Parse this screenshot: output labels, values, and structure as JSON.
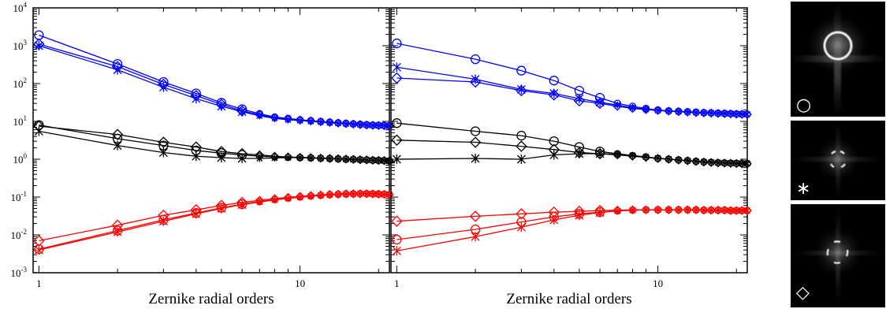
{
  "chart_data": [
    {
      "type": "line",
      "title": "",
      "xlabel": "Zernike radial orders",
      "ylabel": "",
      "x_scale": "log",
      "y_scale": "log",
      "xlim": [
        0.95,
        22
      ],
      "ylim": [
        0.001,
        10000
      ],
      "x_tick_labels": [
        {
          "value": 1,
          "label": "1"
        },
        {
          "value": 10,
          "label": "10"
        }
      ],
      "y_tick_labels": [
        {
          "value": 0.001,
          "base": "10",
          "exp": "-3"
        },
        {
          "value": 0.01,
          "base": "10",
          "exp": "-2"
        },
        {
          "value": 0.1,
          "base": "10",
          "exp": "-1"
        },
        {
          "value": 1,
          "base": "10",
          "exp": "0"
        },
        {
          "value": 10,
          "base": "10",
          "exp": "1"
        },
        {
          "value": 100,
          "base": "10",
          "exp": "2"
        },
        {
          "value": 1000,
          "base": "10",
          "exp": "3"
        },
        {
          "value": 10000,
          "base": "10",
          "exp": "4"
        }
      ],
      "grid": false,
      "x": [
        1,
        2,
        3,
        4,
        5,
        6,
        7,
        8,
        9,
        10,
        11,
        12,
        13,
        14,
        15,
        16,
        17,
        18,
        19,
        20,
        21,
        22
      ],
      "series": [
        {
          "color": "#0000ff",
          "marker": "circle",
          "values": [
            1900,
            330,
            110,
            55,
            31,
            21,
            16,
            13,
            12,
            11,
            10.5,
            10,
            9.6,
            9.2,
            8.9,
            8.6,
            8.4,
            8.2,
            8,
            7.9,
            7.8,
            7.7
          ]
        },
        {
          "color": "#0000ff",
          "marker": "diamond",
          "values": [
            1100,
            280,
            95,
            48,
            28,
            19,
            15,
            12.5,
            11.5,
            10.8,
            10.3,
            9.8,
            9.4,
            9,
            8.7,
            8.5,
            8.2,
            8,
            7.9,
            7.8,
            7.7,
            7.6
          ]
        },
        {
          "color": "#0000ff",
          "marker": "star",
          "values": [
            1000,
            230,
            80,
            40,
            25,
            18,
            14,
            12,
            11,
            10.5,
            10,
            9.6,
            9.2,
            8.9,
            8.6,
            8.4,
            8.2,
            8,
            7.9,
            7.8,
            7.7,
            7.6
          ]
        },
        {
          "color": "#000000",
          "marker": "circle",
          "values": [
            8,
            3.5,
            2.3,
            1.7,
            1.45,
            1.3,
            1.2,
            1.15,
            1.12,
            1.1,
            1.08,
            1.06,
            1.04,
            1.02,
            1,
            0.99,
            0.97,
            0.96,
            0.94,
            0.93,
            0.92,
            0.9
          ]
        },
        {
          "color": "#000000",
          "marker": "diamond",
          "values": [
            7.5,
            4.5,
            2.8,
            2.1,
            1.6,
            1.4,
            1.3,
            1.2,
            1.15,
            1.12,
            1.1,
            1.07,
            1.05,
            1.03,
            1.01,
            0.99,
            0.97,
            0.96,
            0.94,
            0.93,
            0.92,
            0.9
          ]
        },
        {
          "color": "#000000",
          "marker": "star",
          "values": [
            5.5,
            2.3,
            1.5,
            1.2,
            1.1,
            1.05,
            1.05,
            1.08,
            1.1,
            1.1,
            1.08,
            1.06,
            1.04,
            1.02,
            1,
            0.98,
            0.97,
            0.95,
            0.94,
            0.93,
            0.92,
            0.9
          ]
        },
        {
          "color": "#ff0000",
          "marker": "circle",
          "values": [
            0.0042,
            0.013,
            0.025,
            0.038,
            0.052,
            0.065,
            0.076,
            0.086,
            0.094,
            0.101,
            0.107,
            0.112,
            0.116,
            0.119,
            0.121,
            0.122,
            0.123,
            0.123,
            0.122,
            0.12,
            0.119,
            0.117
          ]
        },
        {
          "color": "#ff0000",
          "marker": "diamond",
          "values": [
            0.007,
            0.018,
            0.033,
            0.046,
            0.06,
            0.072,
            0.082,
            0.091,
            0.098,
            0.104,
            0.109,
            0.113,
            0.117,
            0.119,
            0.121,
            0.122,
            0.122,
            0.122,
            0.121,
            0.12,
            0.118,
            0.116
          ]
        },
        {
          "color": "#ff0000",
          "marker": "star",
          "values": [
            0.004,
            0.012,
            0.023,
            0.036,
            0.05,
            0.063,
            0.074,
            0.084,
            0.092,
            0.099,
            0.105,
            0.11,
            0.114,
            0.117,
            0.119,
            0.121,
            0.122,
            0.122,
            0.121,
            0.12,
            0.118,
            0.116
          ]
        }
      ]
    },
    {
      "type": "line",
      "title": "",
      "xlabel": "Zernike radial orders",
      "ylabel": "",
      "x_scale": "log",
      "y_scale": "log",
      "xlim": [
        0.95,
        22
      ],
      "ylim": [
        0.001,
        10000
      ],
      "x_tick_labels": [
        {
          "value": 1,
          "label": "1"
        },
        {
          "value": 10,
          "label": "10"
        }
      ],
      "grid": false,
      "x": [
        1,
        2,
        3,
        4,
        5,
        6,
        7,
        8,
        9,
        10,
        11,
        12,
        13,
        14,
        15,
        16,
        17,
        18,
        19,
        20,
        21,
        22
      ],
      "series": [
        {
          "color": "#0000ff",
          "marker": "circle",
          "values": [
            1150,
            440,
            220,
            120,
            65,
            42,
            30,
            25,
            22,
            20,
            19,
            18.5,
            18,
            17.5,
            17,
            16.8,
            16.5,
            16.3,
            16,
            15.8,
            15.6,
            15.5
          ]
        },
        {
          "color": "#0000ff",
          "marker": "star",
          "values": [
            270,
            130,
            70,
            55,
            40,
            32,
            27,
            23,
            21,
            19.5,
            18.8,
            18.2,
            17.7,
            17.2,
            16.9,
            16.6,
            16.3,
            16.1,
            15.9,
            15.7,
            15.5,
            15.4
          ]
        },
        {
          "color": "#0000ff",
          "marker": "diamond",
          "values": [
            140,
            110,
            65,
            50,
            35,
            30,
            25,
            22,
            20.5,
            19.5,
            18.7,
            18.1,
            17.6,
            17.1,
            16.8,
            16.5,
            16.2,
            16,
            15.8,
            15.6,
            15.4,
            15.3
          ]
        },
        {
          "color": "#000000",
          "marker": "circle",
          "values": [
            9,
            5.5,
            4.2,
            3,
            2.1,
            1.6,
            1.4,
            1.25,
            1.15,
            1.05,
            1,
            0.96,
            0.92,
            0.88,
            0.85,
            0.83,
            0.81,
            0.8,
            0.79,
            0.78,
            0.77,
            0.77
          ]
        },
        {
          "color": "#000000",
          "marker": "diamond",
          "values": [
            3.2,
            2.8,
            2.2,
            1.8,
            1.5,
            1.4,
            1.3,
            1.2,
            1.12,
            1.05,
            1,
            0.95,
            0.91,
            0.87,
            0.84,
            0.82,
            0.8,
            0.79,
            0.78,
            0.77,
            0.76,
            0.76
          ]
        },
        {
          "color": "#000000",
          "marker": "star",
          "values": [
            1,
            1.05,
            1,
            1.3,
            1.4,
            1.4,
            1.35,
            1.25,
            1.15,
            1.07,
            1.01,
            0.96,
            0.92,
            0.88,
            0.85,
            0.83,
            0.81,
            0.8,
            0.79,
            0.78,
            0.77,
            0.77
          ]
        },
        {
          "color": "#ff0000",
          "marker": "diamond",
          "values": [
            0.023,
            0.031,
            0.036,
            0.04,
            0.042,
            0.044,
            0.045,
            0.046,
            0.046,
            0.046,
            0.046,
            0.046,
            0.046,
            0.046,
            0.045,
            0.045,
            0.045,
            0.045,
            0.044,
            0.044,
            0.044,
            0.044
          ]
        },
        {
          "color": "#ff0000",
          "marker": "circle",
          "values": [
            0.0075,
            0.014,
            0.022,
            0.03,
            0.036,
            0.04,
            0.043,
            0.045,
            0.046,
            0.046,
            0.046,
            0.046,
            0.046,
            0.046,
            0.045,
            0.045,
            0.045,
            0.045,
            0.044,
            0.044,
            0.044,
            0.044
          ]
        },
        {
          "color": "#ff0000",
          "marker": "star",
          "values": [
            0.0038,
            0.009,
            0.016,
            0.025,
            0.033,
            0.039,
            0.043,
            0.045,
            0.046,
            0.046,
            0.046,
            0.046,
            0.046,
            0.046,
            0.045,
            0.045,
            0.045,
            0.045,
            0.044,
            0.044,
            0.044,
            0.044
          ]
        }
      ]
    }
  ],
  "psf_panels": [
    {
      "pattern": "ring",
      "symbol_icon": "circle-icon",
      "symbol": "○"
    },
    {
      "pattern": "four-lobe-small",
      "symbol_icon": "asterisk-icon",
      "symbol": "∗"
    },
    {
      "pattern": "four-lobe-ring",
      "symbol_icon": "diamond-icon",
      "symbol": "◇"
    }
  ]
}
